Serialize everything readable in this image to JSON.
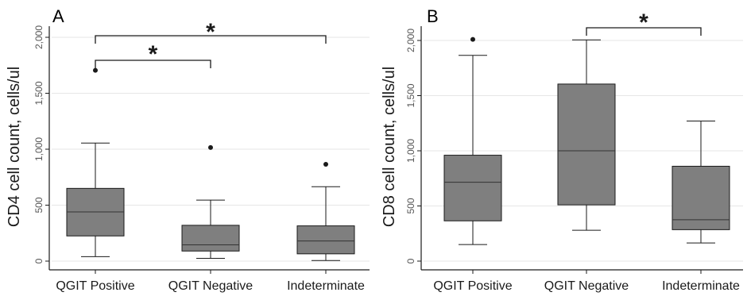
{
  "figure": {
    "panels": [
      {
        "letter": "A"
      },
      {
        "letter": "B"
      }
    ]
  },
  "colors": {
    "box_fill": "#7f7f7f",
    "axis": "#1a1a1a",
    "grid": "#e6e6e6",
    "text": "#1a1a1a",
    "tick_text": "#555555"
  },
  "chart_data": [
    {
      "type": "box",
      "panel": "A",
      "ylabel": "CD4 cell count, cells/ul",
      "categories": [
        "QGIT Positive",
        "QGIT Negative",
        "Indeterminate"
      ],
      "yticks": [
        0,
        500,
        1000,
        1500,
        2000
      ],
      "ytick_labels": [
        "0",
        "500",
        "1,000",
        "1,500",
        "2,000"
      ],
      "ylim": [
        -80,
        2100
      ],
      "grid": true,
      "boxes": [
        {
          "category": "QGIT Positive",
          "whisker_low": 40,
          "q1": 225,
          "median": 440,
          "q3": 650,
          "whisker_high": 1055,
          "outliers": [
            1705
          ]
        },
        {
          "category": "QGIT Negative",
          "whisker_low": 25,
          "q1": 90,
          "median": 145,
          "q3": 320,
          "whisker_high": 545,
          "outliers": [
            1015
          ]
        },
        {
          "category": "Indeterminate",
          "whisker_low": 5,
          "q1": 65,
          "median": 180,
          "q3": 315,
          "whisker_high": 665,
          "outliers": [
            865
          ]
        }
      ],
      "significance": [
        {
          "from": "QGIT Positive",
          "to": "Indeterminate",
          "label": "*"
        },
        {
          "from": "QGIT Positive",
          "to": "QGIT Negative",
          "label": "*"
        }
      ]
    },
    {
      "type": "box",
      "panel": "B",
      "ylabel": "CD8 cell count, cells/ul",
      "categories": [
        "QGIT Positive",
        "QGIT Negative",
        "Indeterminate"
      ],
      "yticks": [
        0,
        500,
        1000,
        1500,
        2000
      ],
      "ytick_labels": [
        "0",
        "500",
        "1,000",
        "1,500",
        "2,000"
      ],
      "ylim": [
        -50,
        2100
      ],
      "grid": true,
      "boxes": [
        {
          "category": "QGIT Positive",
          "whisker_low": 150,
          "q1": 365,
          "median": 715,
          "q3": 960,
          "whisker_high": 1865,
          "outliers": [
            2010
          ]
        },
        {
          "category": "QGIT Negative",
          "whisker_low": 280,
          "q1": 510,
          "median": 1000,
          "q3": 1605,
          "whisker_high": 2005,
          "outliers": []
        },
        {
          "category": "Indeterminate",
          "whisker_low": 165,
          "q1": 285,
          "median": 375,
          "q3": 860,
          "whisker_high": 1270,
          "outliers": []
        }
      ],
      "significance": [
        {
          "from": "QGIT Negative",
          "to": "Indeterminate",
          "label": "*"
        }
      ]
    }
  ]
}
